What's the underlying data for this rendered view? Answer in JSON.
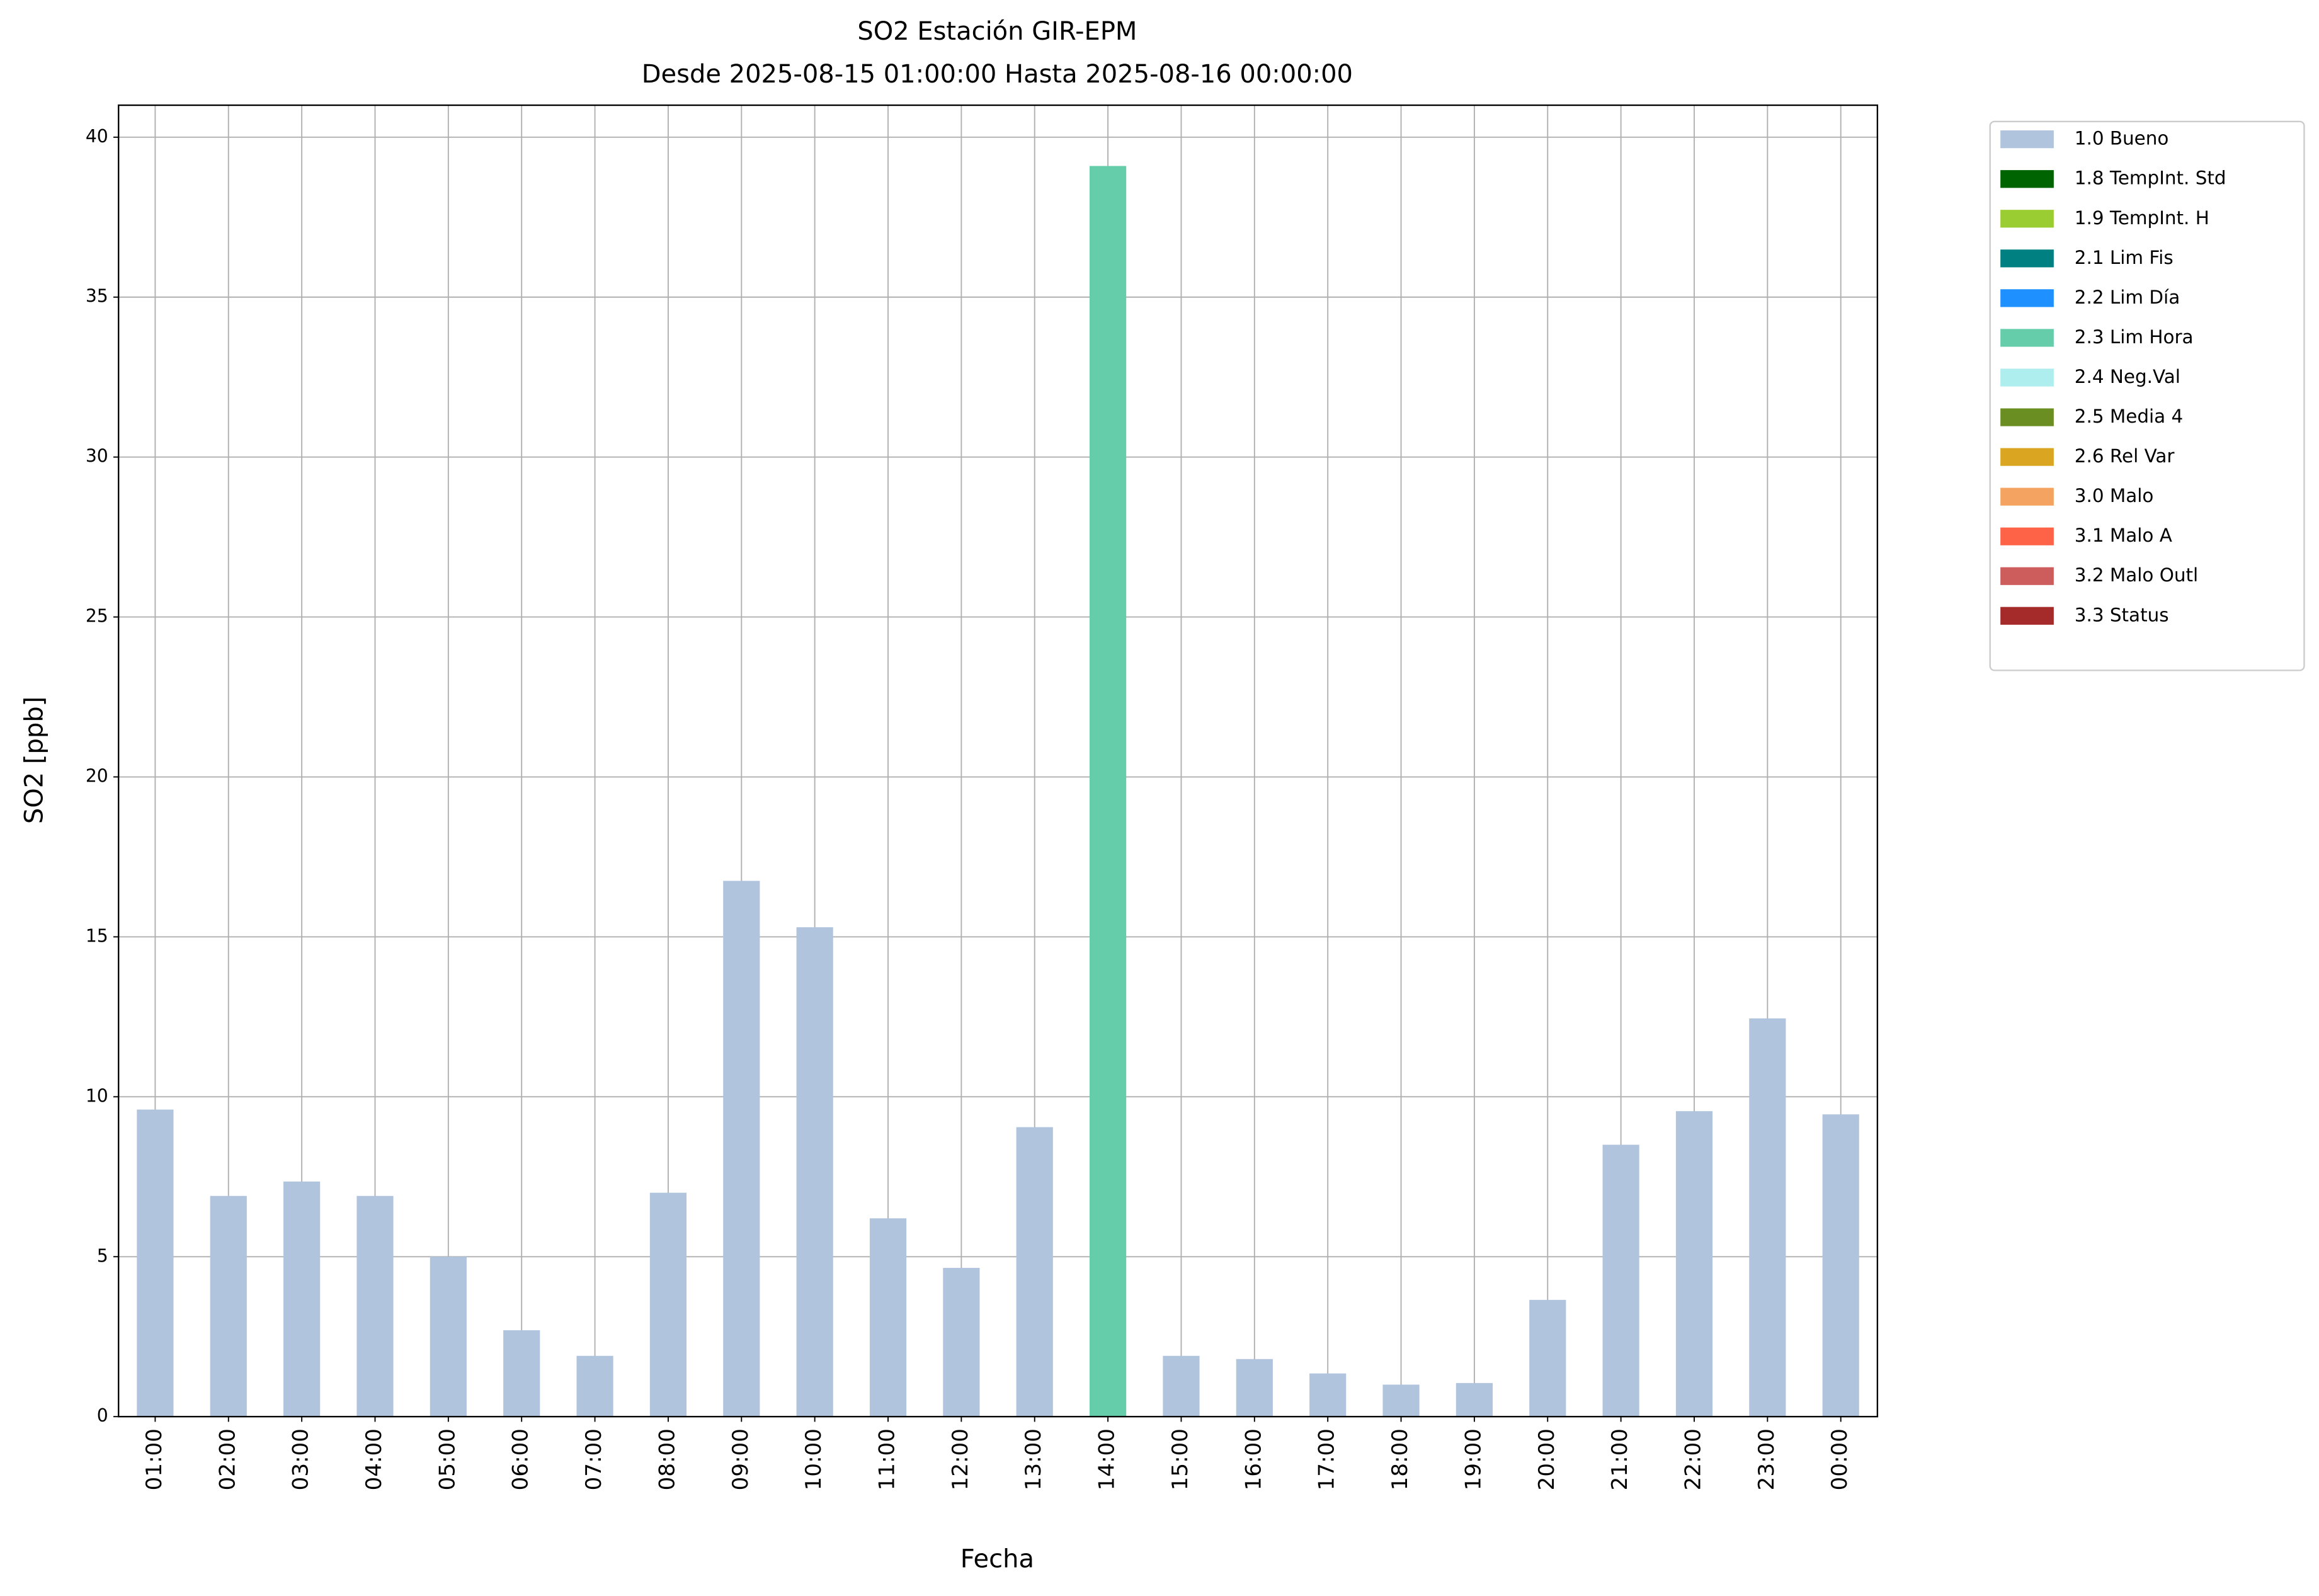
{
  "chart_data": {
    "type": "stacked_bar",
    "title": "SO2 Estación GIR-EPM",
    "subtitle": "Desde 2025-08-15 01:00:00 Hasta 2025-08-16 00:00:00",
    "x_label": "Fecha",
    "y_label": "SO2 [ppb]",
    "categories": [
      "01:00",
      "02:00",
      "03:00",
      "04:00",
      "05:00",
      "06:00",
      "07:00",
      "08:00",
      "09:00",
      "10:00",
      "11:00",
      "12:00",
      "13:00",
      "14:00",
      "15:00",
      "16:00",
      "17:00",
      "18:00",
      "19:00",
      "20:00",
      "21:00",
      "22:00",
      "23:00",
      "00:00"
    ],
    "series": [
      {
        "name": "1.0 Bueno",
        "color": "#b0c4de",
        "values": [
          9.6,
          6.9,
          7.35,
          6.9,
          5.0,
          2.7,
          1.9,
          7.0,
          16.75,
          15.3,
          6.2,
          4.65,
          9.05,
          null,
          1.9,
          1.8,
          1.35,
          1.0,
          1.05,
          3.65,
          8.5,
          9.55,
          12.45,
          9.45
        ]
      },
      {
        "name": "1.8 TempInt. Std",
        "color": "#006400",
        "values": [
          null,
          null,
          null,
          null,
          null,
          null,
          null,
          null,
          null,
          null,
          null,
          null,
          null,
          null,
          null,
          null,
          null,
          null,
          null,
          null,
          null,
          null,
          null,
          null
        ]
      },
      {
        "name": "1.9 TempInt. H",
        "color": "#9acd32",
        "values": [
          null,
          null,
          null,
          null,
          null,
          null,
          null,
          null,
          null,
          null,
          null,
          null,
          null,
          null,
          null,
          null,
          null,
          null,
          null,
          null,
          null,
          null,
          null,
          null
        ]
      },
      {
        "name": "2.1 Lim Fis",
        "color": "#008080",
        "values": [
          null,
          null,
          null,
          null,
          null,
          null,
          null,
          null,
          null,
          null,
          null,
          null,
          null,
          null,
          null,
          null,
          null,
          null,
          null,
          null,
          null,
          null,
          null,
          null
        ]
      },
      {
        "name": "2.2 Lim Día",
        "color": "#1e90ff",
        "values": [
          null,
          null,
          null,
          null,
          null,
          null,
          null,
          null,
          null,
          null,
          null,
          null,
          null,
          null,
          null,
          null,
          null,
          null,
          null,
          null,
          null,
          null,
          null,
          null
        ]
      },
      {
        "name": "2.3 Lim Hora",
        "color": "#66cdaa",
        "values": [
          null,
          null,
          null,
          null,
          null,
          null,
          null,
          null,
          null,
          null,
          null,
          null,
          null,
          39.1,
          null,
          null,
          null,
          null,
          null,
          null,
          null,
          null,
          null,
          null
        ]
      },
      {
        "name": "2.4 Neg.Val",
        "color": "#afeeee",
        "values": [
          null,
          null,
          null,
          null,
          null,
          null,
          null,
          null,
          null,
          null,
          null,
          null,
          null,
          null,
          null,
          null,
          null,
          null,
          null,
          null,
          null,
          null,
          null,
          null
        ]
      },
      {
        "name": "2.5 Media 4",
        "color": "#6b8e23",
        "values": [
          null,
          null,
          null,
          null,
          null,
          null,
          null,
          null,
          null,
          null,
          null,
          null,
          null,
          null,
          null,
          null,
          null,
          null,
          null,
          null,
          null,
          null,
          null,
          null
        ]
      },
      {
        "name": "2.6 Rel Var",
        "color": "#daa520",
        "values": [
          null,
          null,
          null,
          null,
          null,
          null,
          null,
          null,
          null,
          null,
          null,
          null,
          null,
          null,
          null,
          null,
          null,
          null,
          null,
          null,
          null,
          null,
          null,
          null
        ]
      },
      {
        "name": "3.0 Malo",
        "color": "#f4a460",
        "values": [
          null,
          null,
          null,
          null,
          null,
          null,
          null,
          null,
          null,
          null,
          null,
          null,
          null,
          null,
          null,
          null,
          null,
          null,
          null,
          null,
          null,
          null,
          null,
          null
        ]
      },
      {
        "name": "3.1 Malo A",
        "color": "#ff6347",
        "values": [
          null,
          null,
          null,
          null,
          null,
          null,
          null,
          null,
          null,
          null,
          null,
          null,
          null,
          null,
          null,
          null,
          null,
          null,
          null,
          null,
          null,
          null,
          null,
          null
        ]
      },
      {
        "name": "3.2 Malo Outl",
        "color": "#cd5c5c",
        "values": [
          null,
          null,
          null,
          null,
          null,
          null,
          null,
          null,
          null,
          null,
          null,
          null,
          null,
          null,
          null,
          null,
          null,
          null,
          null,
          null,
          null,
          null,
          null,
          null
        ]
      },
      {
        "name": "3.3 Status",
        "color": "#a52a2a",
        "values": [
          null,
          null,
          null,
          null,
          null,
          null,
          null,
          null,
          null,
          null,
          null,
          null,
          null,
          null,
          null,
          null,
          null,
          null,
          null,
          null,
          null,
          null,
          null,
          null
        ]
      }
    ],
    "ylim": [
      0,
      41.0
    ],
    "yticks": [
      0,
      5,
      10,
      15,
      20,
      25,
      30,
      35,
      40
    ],
    "grid": true,
    "legend": "outside-right"
  }
}
